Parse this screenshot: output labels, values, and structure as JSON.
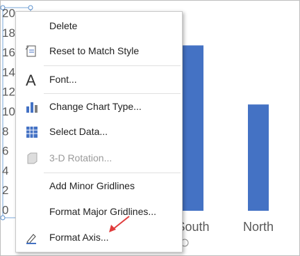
{
  "chart_data": {
    "type": "bar",
    "categories": [
      "South",
      "North"
    ],
    "values": [
      16.8,
      10.8
    ],
    "color": "#4472c4",
    "ylim": [
      0,
      20
    ],
    "yticks": [
      0,
      2,
      4,
      6,
      8,
      10,
      12,
      14,
      16,
      18,
      20
    ]
  },
  "menu": {
    "items": [
      {
        "label": "Delete"
      },
      {
        "label": "Reset to Match Style"
      },
      {
        "label": "Font..."
      },
      {
        "label": "Change Chart Type..."
      },
      {
        "label": "Select Data..."
      },
      {
        "label": "3-D Rotation...",
        "disabled": true
      },
      {
        "label": "Add Minor Gridlines"
      },
      {
        "label": "Format Major Gridlines..."
      },
      {
        "label": "Format Axis..."
      }
    ]
  }
}
